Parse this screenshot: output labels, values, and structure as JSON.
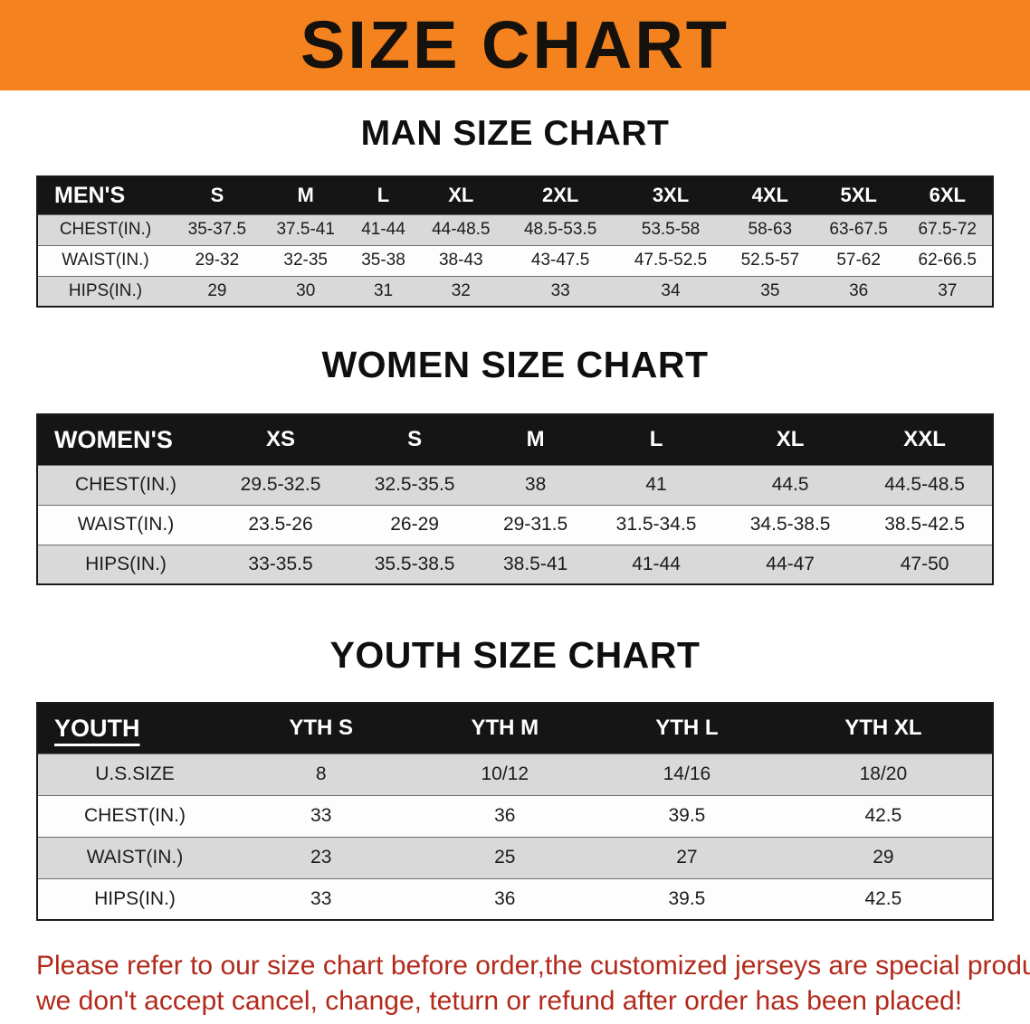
{
  "banner": {
    "title": "SIZE CHART",
    "bg_color": "#F4821F"
  },
  "sections": {
    "men": {
      "heading": "MAN SIZE CHART",
      "table": {
        "header": [
          "MEN'S",
          "S",
          "M",
          "L",
          "XL",
          "2XL",
          "3XL",
          "4XL",
          "5XL",
          "6XL"
        ],
        "rows": [
          [
            "CHEST(IN.)",
            "35-37.5",
            "37.5-41",
            "41-44",
            "44-48.5",
            "48.5-53.5",
            "53.5-58",
            "58-63",
            "63-67.5",
            "67.5-72"
          ],
          [
            "WAIST(IN.)",
            "29-32",
            "32-35",
            "35-38",
            "38-43",
            "43-47.5",
            "47.5-52.5",
            "52.5-57",
            "57-62",
            "62-66.5"
          ],
          [
            "HIPS(IN.)",
            "29",
            "30",
            "31",
            "32",
            "33",
            "34",
            "35",
            "36",
            "37"
          ]
        ]
      }
    },
    "women": {
      "heading": "WOMEN SIZE CHART",
      "table": {
        "header": [
          "WOMEN'S",
          "XS",
          "S",
          "M",
          "L",
          "XL",
          "XXL"
        ],
        "rows": [
          [
            "CHEST(IN.)",
            "29.5-32.5",
            "32.5-35.5",
            "38",
            "41",
            "44.5",
            "44.5-48.5"
          ],
          [
            "WAIST(IN.)",
            "23.5-26",
            "26-29",
            "29-31.5",
            "31.5-34.5",
            "34.5-38.5",
            "38.5-42.5"
          ],
          [
            "HIPS(IN.)",
            "33-35.5",
            "35.5-38.5",
            "38.5-41",
            "41-44",
            "44-47",
            "47-50"
          ]
        ]
      }
    },
    "youth": {
      "heading": "YOUTH SIZE CHART",
      "table": {
        "header": [
          "YOUTH",
          "YTH S",
          "YTH M",
          "YTH L",
          "YTH XL"
        ],
        "rows": [
          [
            "U.S.SIZE",
            "8",
            "10/12",
            "14/16",
            "18/20"
          ],
          [
            "CHEST(IN.)",
            "33",
            "36",
            "39.5",
            "42.5"
          ],
          [
            "WAIST(IN.)",
            "23",
            "25",
            "27",
            "29"
          ],
          [
            "HIPS(IN.)",
            "33",
            "36",
            "39.5",
            "42.5"
          ]
        ]
      }
    }
  },
  "disclaimer": {
    "line1": "Please refer to our size chart before order,the customized jerseys are special products,",
    "line2": "we don't accept cancel, change, teturn or refund after order has been placed!",
    "color": "#b22a1b"
  }
}
